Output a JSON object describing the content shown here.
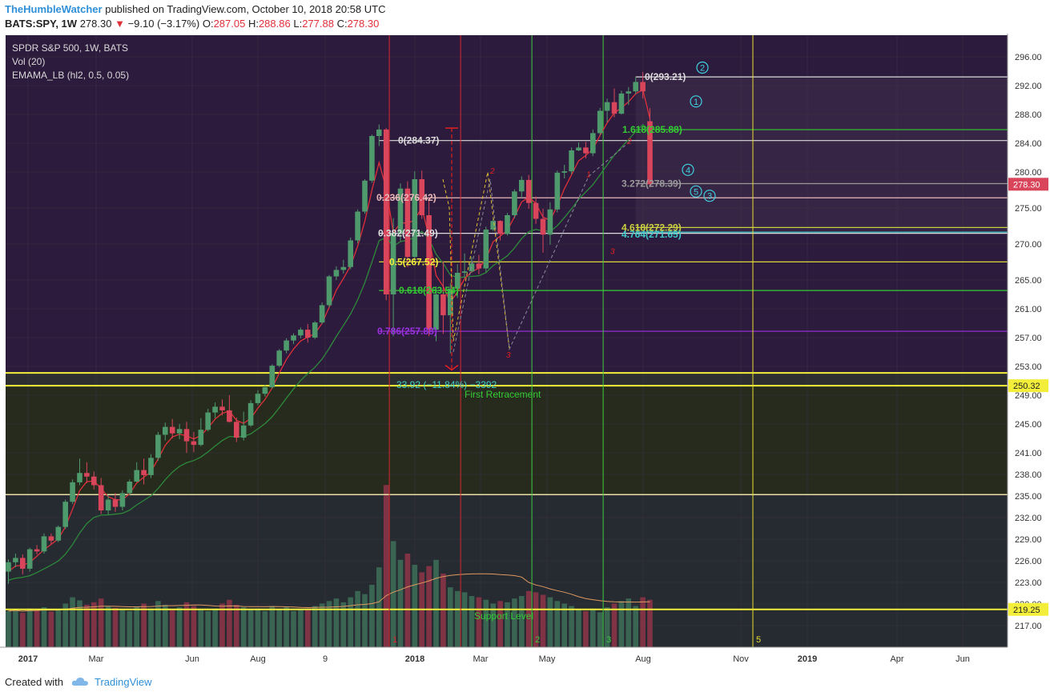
{
  "header": {
    "author": "TheHumbleWatcher",
    "published_text": "published on TradingView.com, October 10, 2018 20:58 UTC",
    "symbol_line": "BATS:SPY, 1W",
    "last": "278.30",
    "change": "−9.10 (−3.17%)",
    "o_label": "O:",
    "o_val": "287.05",
    "h_label": "H:",
    "h_val": "288.86",
    "l_label": "L:",
    "l_val": "277.88",
    "c_label": "C:",
    "c_val": "278.30"
  },
  "footer": {
    "created_with": "Created with",
    "brand": "TradingView"
  },
  "icons": {
    "down_arrow": "triangle-down-icon",
    "logo": "tradingview-cloud-icon"
  },
  "colors": {
    "up": "#4f9a6c",
    "down": "#d9455b",
    "yellow": "#f2ee3a",
    "green": "#33cc33",
    "cyan": "#3fd0e0",
    "red": "#e02020"
  },
  "chart_data": {
    "type": "candlestick",
    "legend": [
      "SPDR S&P 500, 1W, BATS",
      "Vol (20)",
      "EMAMA_LB (hl2, 0.5, 0.05)"
    ],
    "price_axis": {
      "min": 214.0,
      "max": 299.0,
      "ticks": [
        "296.00",
        "292.00",
        "288.00",
        "284.00",
        "280.00",
        "275.00",
        "270.00",
        "265.00",
        "261.00",
        "257.00",
        "253.00",
        "249.00",
        "245.00",
        "241.00",
        "238.00",
        "235.00",
        "232.00",
        "229.00",
        "226.00",
        "223.00",
        "220.00",
        "217.00"
      ]
    },
    "time_axis": [
      "2017",
      "Mar",
      "Jun",
      "Aug",
      "9",
      "2018",
      "Mar",
      "May",
      "Aug",
      "Nov",
      "2019",
      "Apr",
      "Jun"
    ],
    "price_labels": [
      {
        "value": 278.3,
        "text": "278.30",
        "color": "#d9455b"
      },
      {
        "value": 250.32,
        "text": "250.32",
        "color": "#f2ee3a"
      },
      {
        "value": 219.25,
        "text": "219.25",
        "color": "#f2ee3a"
      }
    ],
    "candles": [
      [
        224.5,
        226.2,
        222.8,
        225.8
      ],
      [
        225.8,
        227.0,
        225.1,
        226.4
      ],
      [
        226.4,
        226.9,
        224.1,
        224.9
      ],
      [
        224.9,
        227.8,
        224.5,
        227.6
      ],
      [
        227.6,
        228.2,
        226.9,
        227.3
      ],
      [
        227.3,
        229.8,
        227.0,
        229.4
      ],
      [
        229.4,
        229.8,
        228.3,
        228.8
      ],
      [
        228.8,
        230.9,
        228.6,
        230.7
      ],
      [
        230.7,
        234.5,
        230.4,
        234.2
      ],
      [
        234.2,
        237.3,
        233.9,
        236.9
      ],
      [
        236.9,
        240.2,
        236.5,
        238.2
      ],
      [
        238.2,
        239.7,
        236.8,
        237.7
      ],
      [
        237.7,
        238.4,
        235.9,
        236.5
      ],
      [
        236.5,
        237.5,
        232.5,
        233.0
      ],
      [
        233.0,
        235.1,
        232.4,
        234.5
      ],
      [
        234.5,
        235.4,
        232.8,
        233.5
      ],
      [
        233.5,
        235.8,
        233.0,
        235.4
      ],
      [
        235.4,
        237.3,
        235.1,
        237.0
      ],
      [
        237.0,
        239.7,
        236.9,
        238.6
      ],
      [
        238.6,
        240.2,
        236.6,
        237.9
      ],
      [
        237.9,
        240.8,
        237.5,
        240.3
      ],
      [
        240.3,
        243.9,
        239.9,
        243.5
      ],
      [
        243.5,
        245.2,
        242.7,
        244.6
      ],
      [
        244.6,
        245.7,
        243.0,
        243.7
      ],
      [
        243.7,
        245.0,
        242.9,
        244.3
      ],
      [
        244.3,
        245.3,
        241.0,
        242.6
      ],
      [
        242.6,
        243.9,
        241.1,
        242.1
      ],
      [
        242.1,
        245.8,
        241.9,
        244.2
      ],
      [
        244.2,
        247.1,
        244.0,
        246.6
      ],
      [
        246.6,
        248.0,
        245.8,
        247.4
      ],
      [
        247.4,
        248.4,
        246.2,
        246.9
      ],
      [
        246.9,
        249.0,
        245.2,
        245.3
      ],
      [
        245.3,
        245.9,
        242.5,
        243.1
      ],
      [
        243.1,
        246.7,
        242.7,
        244.8
      ],
      [
        244.8,
        248.3,
        244.6,
        247.9
      ],
      [
        247.9,
        249.7,
        247.6,
        249.2
      ],
      [
        249.2,
        250.4,
        248.8,
        250.1
      ],
      [
        250.1,
        253.3,
        249.9,
        253.1
      ],
      [
        253.1,
        255.4,
        252.9,
        255.2
      ],
      [
        255.2,
        256.9,
        254.8,
        256.6
      ],
      [
        256.6,
        257.6,
        256.1,
        257.3
      ],
      [
        257.3,
        258.4,
        256.9,
        258.1
      ],
      [
        258.1,
        258.9,
        256.3,
        257.0
      ],
      [
        257.0,
        259.3,
        256.8,
        259.1
      ],
      [
        259.1,
        261.9,
        258.9,
        261.5
      ],
      [
        261.5,
        265.7,
        261.2,
        265.5
      ],
      [
        265.5,
        266.9,
        265.0,
        266.4
      ],
      [
        266.4,
        267.8,
        265.9,
        266.8
      ],
      [
        266.8,
        270.9,
        266.5,
        270.5
      ],
      [
        270.5,
        274.8,
        270.1,
        274.5
      ],
      [
        274.5,
        279.0,
        274.2,
        278.8
      ],
      [
        278.8,
        285.2,
        278.5,
        285.0
      ],
      [
        285.0,
        286.6,
        283.6,
        285.9
      ],
      [
        285.9,
        286.1,
        262.2,
        263.0
      ],
      [
        263.0,
        273.6,
        257.2,
        271.5
      ],
      [
        271.5,
        278.4,
        270.4,
        277.7
      ],
      [
        277.7,
        278.7,
        266.8,
        268.2
      ],
      [
        268.2,
        280.1,
        267.6,
        279.0
      ],
      [
        279.0,
        280.2,
        273.5,
        274.0
      ],
      [
        274.0,
        276.4,
        257.2,
        258.1
      ],
      [
        258.1,
        264.1,
        256.5,
        263.0
      ],
      [
        263.0,
        267.6,
        257.5,
        260.1
      ],
      [
        260.1,
        264.6,
        254.8,
        263.8
      ],
      [
        263.8,
        267.2,
        262.5,
        266.0
      ],
      [
        266.0,
        268.7,
        265.3,
        266.2
      ],
      [
        266.2,
        268.2,
        266.0,
        267.3
      ],
      [
        267.3,
        268.5,
        265.8,
        266.6
      ],
      [
        266.6,
        272.4,
        266.1,
        272.0
      ],
      [
        272.0,
        273.5,
        271.8,
        273.2
      ],
      [
        273.2,
        273.3,
        270.5,
        271.4
      ],
      [
        271.4,
        274.3,
        271.2,
        274.0
      ],
      [
        274.0,
        277.6,
        273.6,
        277.3
      ],
      [
        277.3,
        279.4,
        276.4,
        278.9
      ],
      [
        278.9,
        279.6,
        274.9,
        275.7
      ],
      [
        275.7,
        276.6,
        272.8,
        273.5
      ],
      [
        273.5,
        274.9,
        268.8,
        271.3
      ],
      [
        271.3,
        275.8,
        269.9,
        274.8
      ],
      [
        274.8,
        280.2,
        274.4,
        279.9
      ],
      [
        279.9,
        281.0,
        279.1,
        280.1
      ],
      [
        280.1,
        283.4,
        279.7,
        283.0
      ],
      [
        283.0,
        284.1,
        282.9,
        283.4
      ],
      [
        283.4,
        284.2,
        281.9,
        282.6
      ],
      [
        282.6,
        285.9,
        282.2,
        285.4
      ],
      [
        285.4,
        288.9,
        285.1,
        288.5
      ],
      [
        288.5,
        290.2,
        286.9,
        289.7
      ],
      [
        289.7,
        291.6,
        287.6,
        288.1
      ],
      [
        288.1,
        291.3,
        288.0,
        290.9
      ],
      [
        290.9,
        291.8,
        289.3,
        291.2
      ],
      [
        291.2,
        293.2,
        290.8,
        292.5
      ],
      [
        292.5,
        293.9,
        290.2,
        291.2
      ],
      [
        287.05,
        288.86,
        277.88,
        278.3
      ]
    ],
    "volume": [
      58,
      60,
      55,
      62,
      59,
      64,
      57,
      61,
      70,
      80,
      75,
      68,
      72,
      78,
      66,
      63,
      60,
      58,
      65,
      70,
      62,
      74,
      68,
      60,
      64,
      72,
      66,
      60,
      58,
      62,
      70,
      76,
      68,
      64,
      60,
      62,
      58,
      66,
      60,
      64,
      58,
      60,
      62,
      66,
      70,
      74,
      78,
      72,
      80,
      90,
      85,
      100,
      128,
      260,
      170,
      140,
      150,
      132,
      120,
      130,
      140,
      118,
      96,
      90,
      88,
      82,
      80,
      76,
      70,
      74,
      72,
      78,
      82,
      90,
      88,
      84,
      80,
      74,
      70,
      66,
      60,
      58,
      62,
      56,
      64,
      70,
      74,
      78,
      66,
      80,
      76
    ],
    "horizontal_lines": [
      {
        "value": 293.21,
        "label": "0(293.21)",
        "color": "#dcdcdc"
      },
      {
        "value": 285.88,
        "label": "1.618(285.88)",
        "color": "#33cc33"
      },
      {
        "value": 284.37,
        "label": "0(284.37)",
        "color": "#dcdcdc"
      },
      {
        "value": 278.39,
        "label": "3.272(278.39)",
        "color": "#9a9a9a"
      },
      {
        "value": 276.42,
        "label": "0.236(276.42)",
        "color": "#e8b8b8"
      },
      {
        "value": 272.29,
        "label": "4.618(272.29)",
        "color": "#c8d040"
      },
      {
        "value": 271.65,
        "label": "4.764(271.65)",
        "color": "#3fc8c8"
      },
      {
        "value": 271.49,
        "label": "0.382(271.49)",
        "color": "#dcdcdc"
      },
      {
        "value": 267.52,
        "label": "0.5(267.52)",
        "color": "#f2ee3a"
      },
      {
        "value": 263.54,
        "label": "0.618(263.54)",
        "color": "#33cc33"
      },
      {
        "value": 257.88,
        "label": "0.786(257.88)",
        "color": "#9a30e0"
      },
      {
        "value": 252.1,
        "label": "",
        "color": "#f2ee3a"
      },
      {
        "value": 250.32,
        "label": "",
        "color": "#f2ee3a"
      },
      {
        "value": 235.2,
        "label": "",
        "color": "#e8e0a0"
      },
      {
        "value": 219.25,
        "label": "",
        "color": "#f2ee3a"
      }
    ],
    "vertical_lines": [
      {
        "date_index": 54,
        "color": "#d8282f",
        "label": "1"
      },
      {
        "date_index": 64,
        "color": "#d8282f",
        "label": ""
      },
      {
        "date_index": 74,
        "color": "#3fcc3f",
        "label": "2"
      },
      {
        "date_index": 84,
        "color": "#3fcc3f",
        "label": "3"
      },
      {
        "date_index": 105,
        "color": "#e8e030",
        "label": "5"
      }
    ],
    "annotations": [
      {
        "text": "33.92 (−11.84%) −3392",
        "color": "#3fd0c8"
      },
      {
        "text": "First Retracement",
        "color": "#33cc33"
      },
      {
        "text": "Support Level",
        "color": "#33cc33"
      }
    ],
    "wave_labels": [
      "1",
      "2",
      "3",
      "4",
      "5",
      "3"
    ],
    "small_labels": [
      "2",
      "3",
      "1",
      "2",
      "3"
    ]
  }
}
